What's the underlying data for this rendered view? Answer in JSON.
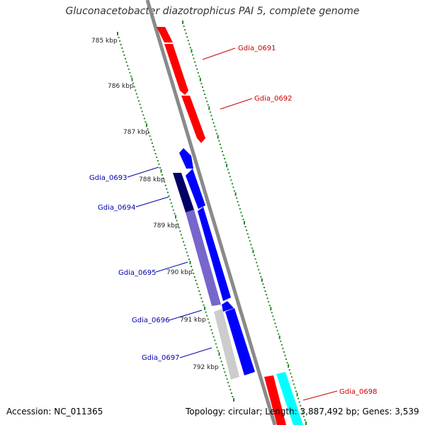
{
  "title": "Gluconacetobacter diazotrophicus PAI 5, complete genome",
  "accession_text": "Accession: NC_011365",
  "topology_text": "Topology: circular; Length: 3,887,492 bp; Genes: 3,539",
  "ticks": [
    "785 kbp",
    "786 kbp",
    "787 kbp",
    "788 kbp",
    "789 kbp",
    "790 kbp",
    "791 kbp",
    "792 kbp"
  ],
  "genes": [
    {
      "id": "Gdia_0691",
      "color": "#ff0000"
    },
    {
      "id": "Gdia_0692",
      "color": "#ff0000"
    },
    {
      "id": "Gdia_0693",
      "color": "#0000cc"
    },
    {
      "id": "Gdia_0694",
      "color": "#0000cc"
    },
    {
      "id": "Gdia_0695",
      "color": "#0000cc"
    },
    {
      "id": "Gdia_0696",
      "color": "#0000cc"
    },
    {
      "id": "Gdia_0697",
      "color": "#0000cc"
    },
    {
      "id": "Gdia_0698",
      "color": "#ff0000"
    }
  ],
  "colors": {
    "backbone": "#888888",
    "tick_marks": "#228822",
    "forward_red": "#ff0000",
    "blue": "#0000ff",
    "dark_navy": "#000066",
    "lavender": "#7766cc",
    "light_gray": "#cccccc",
    "cyan": "#00ffff",
    "label_red": "#cc0000",
    "label_blue": "#0000aa"
  }
}
